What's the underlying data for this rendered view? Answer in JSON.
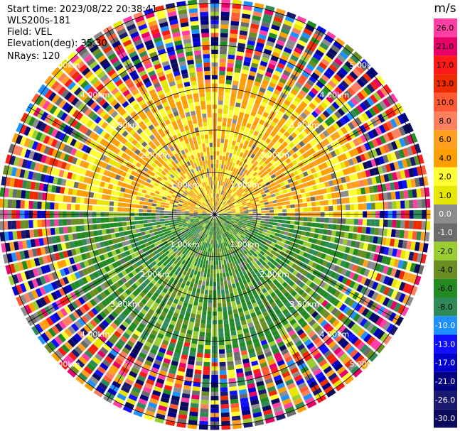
{
  "meta": {
    "start_time": "Start time: 2023/08/22 20:38:41",
    "instrument": "WLS200s-181",
    "field": "Field: VEL",
    "elevation": "Elevation(deg): 35.30",
    "nrays": "NRays: 120"
  },
  "chart_data": {
    "type": "heatmap",
    "projection": "polar-ppi",
    "field": "VEL",
    "units": "m/s",
    "range_ring_labels": [
      "1.00km",
      "2.00km",
      "3.00km",
      "4.00km",
      "5.00km"
    ],
    "range_rings_km": [
      1,
      2,
      3,
      4,
      5
    ],
    "max_range_km": 5.1,
    "colorbar": {
      "title": "m/s",
      "ticks": [
        "26.0",
        "21.0",
        "17.0",
        "13.0",
        "10.0",
        "8.0",
        "6.0",
        "4.0",
        "2.0",
        "1.0",
        "0.0",
        "-1.0",
        "-2.0",
        "-4.0",
        "-6.0",
        "-8.0",
        "-10.0",
        "-13.0",
        "-17.0",
        "-21.0",
        "-26.0",
        "-30.0"
      ],
      "colors": [
        "#ff3fa3",
        "#e8006a",
        "#ff1a1a",
        "#ee2a00",
        "#ff5a33",
        "#ff8060",
        "#ffa020",
        "#ff9e00",
        "#ffff33",
        "#e6e600",
        "#8c8c8c",
        "#6b6b6b",
        "#9acd32",
        "#6b8e23",
        "#228b22",
        "#2e8b57",
        "#1e90ff",
        "#1010ff",
        "#0000cd",
        "#000080",
        "#191970",
        "#0b0b5e"
      ]
    },
    "pattern": {
      "near_range_km": 2.0,
      "north_half": "positive (approaching +1 to +6 m/s, yellow/orange)",
      "south_half": "negative (-1 to -6 m/s, green)",
      "outer_range": "noise (all colors)"
    }
  }
}
